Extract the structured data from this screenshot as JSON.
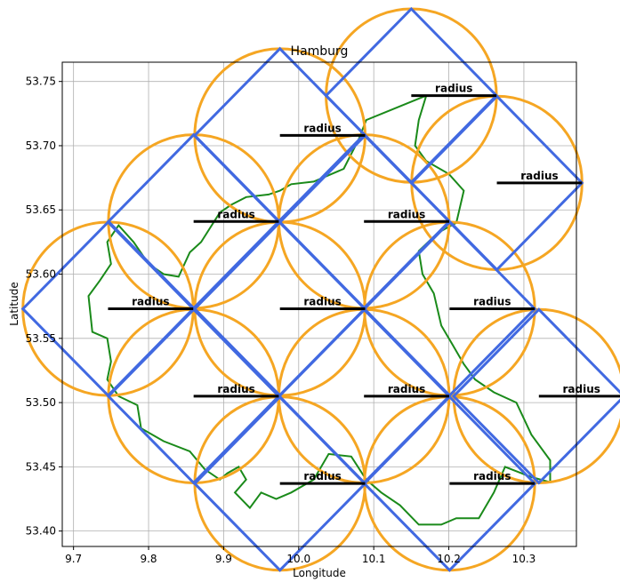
{
  "chart_data": {
    "type": "scatter",
    "title": "Hamburg",
    "xlabel": "Longitude",
    "ylabel": "Latitude",
    "xlim": [
      9.685,
      10.37
    ],
    "ylim": [
      53.388,
      53.765
    ],
    "grid": true,
    "xticks": [
      {
        "value": 9.7,
        "label": "9.7"
      },
      {
        "value": 9.8,
        "label": "9.8"
      },
      {
        "value": 9.9,
        "label": "9.9"
      },
      {
        "value": 10.0,
        "label": "10.0"
      },
      {
        "value": 10.1,
        "label": "10.1"
      },
      {
        "value": 10.2,
        "label": "10.2"
      },
      {
        "value": 10.3,
        "label": "10.3"
      }
    ],
    "yticks": [
      {
        "value": 53.4,
        "label": "53.40"
      },
      {
        "value": 53.45,
        "label": "53.45"
      },
      {
        "value": 53.5,
        "label": "53.50"
      },
      {
        "value": 53.55,
        "label": "53.55"
      },
      {
        "value": 53.6,
        "label": "53.60"
      },
      {
        "value": 53.65,
        "label": "53.65"
      },
      {
        "value": 53.7,
        "label": "53.70"
      },
      {
        "value": 53.75,
        "label": "53.75"
      }
    ],
    "radius_label": "radius",
    "radius_lon": 0.1135,
    "radius_lat": 0.0675,
    "circle_centers": [
      [
        10.15,
        53.739
      ],
      [
        10.264,
        53.671
      ],
      [
        9.975,
        53.708
      ],
      [
        9.86,
        53.641
      ],
      [
        10.087,
        53.641
      ],
      [
        9.746,
        53.573
      ],
      [
        9.975,
        53.573
      ],
      [
        10.201,
        53.573
      ],
      [
        9.86,
        53.505
      ],
      [
        10.087,
        53.505
      ],
      [
        10.32,
        53.505
      ],
      [
        9.975,
        53.437
      ],
      [
        10.201,
        53.437
      ]
    ],
    "boundary": [
      [
        10.17,
        53.739
      ],
      [
        10.09,
        53.72
      ],
      [
        10.08,
        53.705
      ],
      [
        10.06,
        53.682
      ],
      [
        10.02,
        53.672
      ],
      [
        9.99,
        53.67
      ],
      [
        9.975,
        53.665
      ],
      [
        9.96,
        53.662
      ],
      [
        9.93,
        53.66
      ],
      [
        9.91,
        53.654
      ],
      [
        9.895,
        53.648
      ],
      [
        9.87,
        53.625
      ],
      [
        9.855,
        53.617
      ],
      [
        9.84,
        53.598
      ],
      [
        9.82,
        53.6
      ],
      [
        9.8,
        53.608
      ],
      [
        9.78,
        53.625
      ],
      [
        9.76,
        53.638
      ],
      [
        9.745,
        53.625
      ],
      [
        9.75,
        53.608
      ],
      [
        9.735,
        53.595
      ],
      [
        9.72,
        53.583
      ],
      [
        9.725,
        53.555
      ],
      [
        9.745,
        53.55
      ],
      [
        9.75,
        53.532
      ],
      [
        9.745,
        53.518
      ],
      [
        9.76,
        53.505
      ],
      [
        9.785,
        53.498
      ],
      [
        9.79,
        53.48
      ],
      [
        9.82,
        53.47
      ],
      [
        9.855,
        53.462
      ],
      [
        9.875,
        53.448
      ],
      [
        9.895,
        53.44
      ],
      [
        9.905,
        53.445
      ],
      [
        9.92,
        53.45
      ],
      [
        9.93,
        53.44
      ],
      [
        9.915,
        53.43
      ],
      [
        9.935,
        53.418
      ],
      [
        9.95,
        53.43
      ],
      [
        9.97,
        53.425
      ],
      [
        9.99,
        53.43
      ],
      [
        10.02,
        53.44
      ],
      [
        10.04,
        53.46
      ],
      [
        10.07,
        53.458
      ],
      [
        10.09,
        53.44
      ],
      [
        10.11,
        53.43
      ],
      [
        10.135,
        53.42
      ],
      [
        10.16,
        53.405
      ],
      [
        10.19,
        53.405
      ],
      [
        10.21,
        53.41
      ],
      [
        10.24,
        53.41
      ],
      [
        10.26,
        53.43
      ],
      [
        10.275,
        53.45
      ],
      [
        10.31,
        53.442
      ],
      [
        10.335,
        53.438
      ],
      [
        10.335,
        53.455
      ],
      [
        10.31,
        53.475
      ],
      [
        10.29,
        53.5
      ],
      [
        10.26,
        53.508
      ],
      [
        10.235,
        53.518
      ],
      [
        10.22,
        53.53
      ],
      [
        10.205,
        53.545
      ],
      [
        10.19,
        53.56
      ],
      [
        10.18,
        53.585
      ],
      [
        10.165,
        53.6
      ],
      [
        10.16,
        53.618
      ],
      [
        10.185,
        53.632
      ],
      [
        10.21,
        53.64
      ],
      [
        10.22,
        53.665
      ],
      [
        10.2,
        53.678
      ],
      [
        10.17,
        53.688
      ],
      [
        10.155,
        53.7
      ],
      [
        10.16,
        53.72
      ],
      [
        10.17,
        53.739
      ]
    ]
  }
}
